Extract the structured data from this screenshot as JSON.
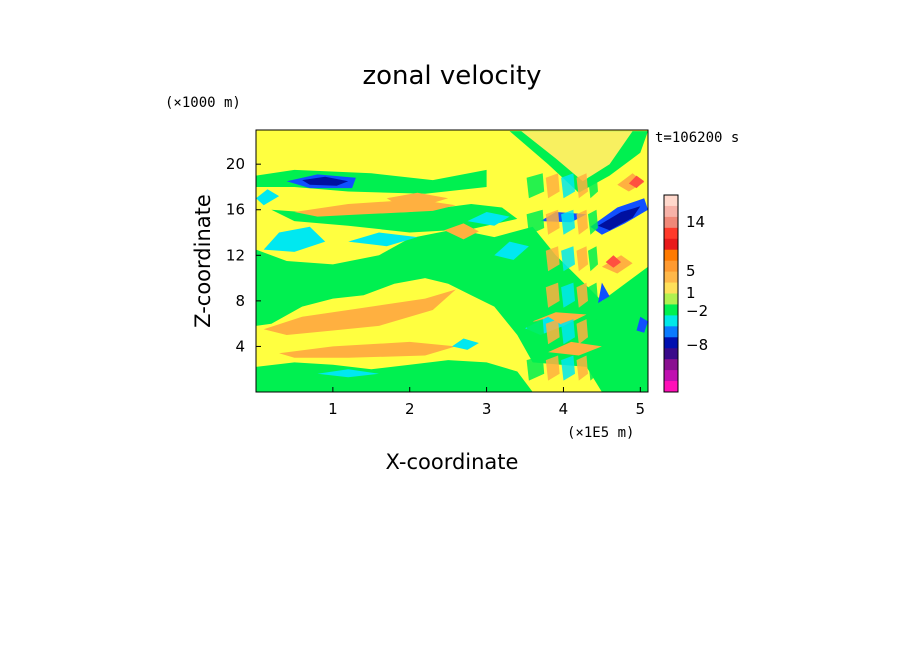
{
  "chart_data": {
    "type": "heatmap",
    "title": "zonal velocity",
    "xlabel": "X-coordinate",
    "ylabel": "Z-coordinate",
    "x_unit": "(×1E5 m)",
    "y_unit": "(×1000 m)",
    "time_label": "t=106200 s",
    "xlim": [
      0,
      5.1
    ],
    "ylim": [
      0,
      23
    ],
    "x_ticks": [
      "1",
      "2",
      "3",
      "4",
      "5"
    ],
    "y_ticks": [
      "4",
      "8",
      "12",
      "16",
      "20"
    ],
    "colorbar": {
      "labels": [
        "14",
        "5",
        "1",
        "−2",
        "−8"
      ],
      "colors": [
        "#ffd8cc",
        "#f7b2a8",
        "#f08878",
        "#ff3a2a",
        "#e81a1a",
        "#ff7a00",
        "#ff9a30",
        "#ffb84a",
        "#ffe05a",
        "#b0f050",
        "#00f050",
        "#00e8e8",
        "#0a7bff",
        "#0010b0",
        "#3a0a8a",
        "#8a1090",
        "#c010b0",
        "#ff10b8"
      ]
    },
    "field_colors": {
      "background": "#ffff40",
      "light_yellow": "#f8f060",
      "green": "#00f050",
      "orange": "#ffb040",
      "cyan": "#00e8f0",
      "blue": "#1050ff",
      "dark_blue": "#0010a0",
      "red": "#ff5040"
    },
    "regions": [
      {
        "kind": "green",
        "pts": [
          [
            0,
            19
          ],
          [
            0.5,
            19.5
          ],
          [
            1.5,
            19.2
          ],
          [
            2.3,
            18.6
          ],
          [
            3,
            19.5
          ],
          [
            3,
            18
          ],
          [
            2.2,
            17.4
          ],
          [
            1.2,
            17.6
          ],
          [
            0.5,
            18
          ],
          [
            0,
            18
          ]
        ]
      },
      {
        "kind": "green",
        "pts": [
          [
            0,
            12.5
          ],
          [
            0.4,
            11.5
          ],
          [
            1,
            11.2
          ],
          [
            1.6,
            12
          ],
          [
            2,
            13.5
          ],
          [
            2.6,
            14.3
          ],
          [
            3.1,
            13.6
          ],
          [
            3.6,
            14.5
          ],
          [
            3.9,
            12
          ],
          [
            4.5,
            8
          ],
          [
            5.1,
            11
          ],
          [
            5.1,
            0
          ],
          [
            4.5,
            0
          ],
          [
            4.3,
            2.2
          ],
          [
            3.6,
            2.6
          ],
          [
            3.4,
            5
          ],
          [
            3.1,
            7.5
          ],
          [
            2.8,
            8.5
          ],
          [
            2.5,
            9.5
          ],
          [
            2.2,
            10
          ],
          [
            1.8,
            9.5
          ],
          [
            1.4,
            8.5
          ],
          [
            1,
            8.2
          ],
          [
            0.6,
            7.5
          ],
          [
            0.2,
            6
          ],
          [
            0,
            5.8
          ]
        ]
      },
      {
        "kind": "green",
        "pts": [
          [
            0,
            2.2
          ],
          [
            0.5,
            2.6
          ],
          [
            1,
            2.4
          ],
          [
            1.5,
            2.0
          ],
          [
            2.0,
            2.4
          ],
          [
            2.5,
            2.8
          ],
          [
            3.0,
            2.6
          ],
          [
            3.4,
            1.8
          ],
          [
            3.6,
            0
          ],
          [
            0,
            0
          ]
        ]
      },
      {
        "kind": "green",
        "pts": [
          [
            0.2,
            16
          ],
          [
            1,
            15.6
          ],
          [
            2,
            15.8
          ],
          [
            2.8,
            16.5
          ],
          [
            3.2,
            16.2
          ],
          [
            3.4,
            15.2
          ],
          [
            2.8,
            14.3
          ],
          [
            2.0,
            14
          ],
          [
            1.2,
            14.6
          ],
          [
            0.5,
            15
          ]
        ]
      },
      {
        "kind": "green",
        "pts": [
          [
            3.3,
            22.9
          ],
          [
            3.8,
            20
          ],
          [
            4.2,
            17.5
          ],
          [
            4.6,
            19
          ],
          [
            5.0,
            21
          ],
          [
            5.1,
            22.9
          ]
        ]
      },
      {
        "kind": "light_yellow",
        "pts": [
          [
            3.45,
            22.9
          ],
          [
            3.9,
            20.5
          ],
          [
            4.25,
            18.5
          ],
          [
            4.6,
            20
          ],
          [
            4.9,
            22.9
          ]
        ]
      },
      {
        "kind": "orange",
        "pts": [
          [
            0.1,
            5.5
          ],
          [
            0.6,
            6.6
          ],
          [
            1.4,
            7.4
          ],
          [
            2.2,
            8.2
          ],
          [
            2.6,
            9.0
          ],
          [
            2.3,
            7.2
          ],
          [
            1.6,
            5.8
          ],
          [
            1.0,
            5.4
          ],
          [
            0.4,
            5.0
          ]
        ]
      },
      {
        "kind": "orange",
        "pts": [
          [
            0.3,
            3.4
          ],
          [
            1.0,
            4.0
          ],
          [
            2.0,
            4.4
          ],
          [
            2.6,
            4.0
          ],
          [
            2.2,
            3.2
          ],
          [
            1.2,
            3.0
          ],
          [
            0.5,
            3.0
          ]
        ]
      },
      {
        "kind": "orange",
        "pts": [
          [
            0.5,
            15.8
          ],
          [
            1.2,
            16.5
          ],
          [
            2.1,
            16.9
          ],
          [
            2.6,
            16.4
          ],
          [
            2.3,
            15.9
          ],
          [
            1.4,
            15.6
          ],
          [
            0.8,
            15.4
          ]
        ]
      },
      {
        "kind": "orange",
        "pts": [
          [
            1.7,
            17.0
          ],
          [
            2.1,
            17.5
          ],
          [
            2.5,
            17.0
          ],
          [
            2.2,
            16.4
          ],
          [
            1.8,
            16.6
          ]
        ]
      },
      {
        "kind": "orange",
        "pts": [
          [
            2.45,
            14.2
          ],
          [
            2.7,
            14.8
          ],
          [
            2.9,
            14.1
          ],
          [
            2.7,
            13.4
          ]
        ]
      },
      {
        "kind": "orange",
        "pts": [
          [
            3.6,
            6.2
          ],
          [
            3.9,
            7
          ],
          [
            4.3,
            6.8
          ],
          [
            4.0,
            5.8
          ]
        ]
      },
      {
        "kind": "orange",
        "pts": [
          [
            3.8,
            3.5
          ],
          [
            4.1,
            4.4
          ],
          [
            4.5,
            4.0
          ],
          [
            4.2,
            3.2
          ]
        ]
      },
      {
        "kind": "orange",
        "pts": [
          [
            4.5,
            11
          ],
          [
            4.75,
            12
          ],
          [
            4.9,
            11.3
          ],
          [
            4.7,
            10.4
          ]
        ]
      },
      {
        "kind": "orange",
        "pts": [
          [
            4.7,
            18.2
          ],
          [
            4.9,
            19.2
          ],
          [
            5.05,
            18.4
          ],
          [
            4.85,
            17.6
          ]
        ]
      },
      {
        "kind": "cyan",
        "pts": [
          [
            0.1,
            12.5
          ],
          [
            0.3,
            14
          ],
          [
            0.7,
            14.5
          ],
          [
            0.9,
            13.2
          ],
          [
            0.5,
            12.3
          ]
        ]
      },
      {
        "kind": "cyan",
        "pts": [
          [
            1.2,
            13.2
          ],
          [
            1.6,
            14.0
          ],
          [
            2.1,
            13.6
          ],
          [
            1.7,
            12.8
          ]
        ]
      },
      {
        "kind": "cyan",
        "pts": [
          [
            2.75,
            15.0
          ],
          [
            3.0,
            15.8
          ],
          [
            3.3,
            15.4
          ],
          [
            3.1,
            14.6
          ]
        ]
      },
      {
        "kind": "cyan",
        "pts": [
          [
            3.1,
            12.0
          ],
          [
            3.3,
            13.2
          ],
          [
            3.55,
            12.8
          ],
          [
            3.35,
            11.6
          ]
        ]
      },
      {
        "kind": "cyan",
        "pts": [
          [
            2.55,
            4.0
          ],
          [
            2.7,
            4.7
          ],
          [
            2.9,
            4.3
          ],
          [
            2.75,
            3.7
          ]
        ]
      },
      {
        "kind": "cyan",
        "pts": [
          [
            0.8,
            1.6
          ],
          [
            1.2,
            2.0
          ],
          [
            1.6,
            1.6
          ],
          [
            1.2,
            1.3
          ]
        ]
      },
      {
        "kind": "cyan",
        "pts": [
          [
            3.5,
            5.6
          ],
          [
            3.8,
            6.6
          ],
          [
            4.0,
            5.8
          ],
          [
            3.7,
            5.0
          ]
        ]
      },
      {
        "kind": "cyan",
        "pts": [
          [
            0.0,
            17.0
          ],
          [
            0.15,
            17.8
          ],
          [
            0.3,
            17.2
          ],
          [
            0.1,
            16.4
          ]
        ]
      },
      {
        "kind": "blue",
        "pts": [
          [
            0.4,
            18.5
          ],
          [
            0.8,
            19.1
          ],
          [
            1.3,
            18.8
          ],
          [
            1.25,
            17.9
          ],
          [
            0.7,
            17.9
          ]
        ]
      },
      {
        "kind": "dark_blue",
        "pts": [
          [
            0.6,
            18.6
          ],
          [
            0.9,
            18.9
          ],
          [
            1.2,
            18.5
          ],
          [
            1.05,
            18.1
          ],
          [
            0.7,
            18.2
          ]
        ]
      },
      {
        "kind": "blue",
        "pts": [
          [
            4.35,
            14.5
          ],
          [
            4.7,
            16.2
          ],
          [
            5.05,
            17.0
          ],
          [
            5.1,
            16.0
          ],
          [
            4.8,
            14.8
          ],
          [
            4.5,
            13.8
          ]
        ]
      },
      {
        "kind": "dark_blue",
        "pts": [
          [
            4.45,
            14.6
          ],
          [
            4.75,
            15.8
          ],
          [
            5.0,
            16.3
          ],
          [
            4.9,
            15.3
          ],
          [
            4.6,
            14.2
          ]
        ]
      },
      {
        "kind": "blue",
        "pts": [
          [
            3.7,
            15.0
          ],
          [
            3.9,
            15.8
          ],
          [
            4.3,
            15.6
          ],
          [
            4.1,
            14.9
          ]
        ]
      },
      {
        "kind": "blue",
        "pts": [
          [
            4.45,
            7.8
          ],
          [
            4.5,
            9.6
          ],
          [
            4.6,
            8.4
          ]
        ]
      },
      {
        "kind": "blue",
        "pts": [
          [
            4.95,
            5.4
          ],
          [
            5.0,
            6.6
          ],
          [
            5.1,
            6.2
          ],
          [
            5.05,
            5.2
          ]
        ]
      },
      {
        "kind": "red",
        "pts": [
          [
            4.85,
            18.3
          ],
          [
            4.95,
            19.0
          ],
          [
            5.05,
            18.5
          ],
          [
            4.95,
            17.9
          ]
        ]
      },
      {
        "kind": "red",
        "pts": [
          [
            4.55,
            11.4
          ],
          [
            4.65,
            12.0
          ],
          [
            4.75,
            11.4
          ],
          [
            4.65,
            10.9
          ]
        ]
      }
    ],
    "waves": [
      {
        "x": 3.55,
        "x1": 3.75,
        "kind": "green"
      },
      {
        "x": 3.8,
        "x1": 3.95,
        "kind": "orange"
      },
      {
        "x": 4.0,
        "x1": 4.15,
        "kind": "cyan"
      },
      {
        "x": 4.2,
        "x1": 4.32,
        "kind": "orange"
      },
      {
        "x": 4.35,
        "x1": 4.45,
        "kind": "green"
      }
    ]
  }
}
